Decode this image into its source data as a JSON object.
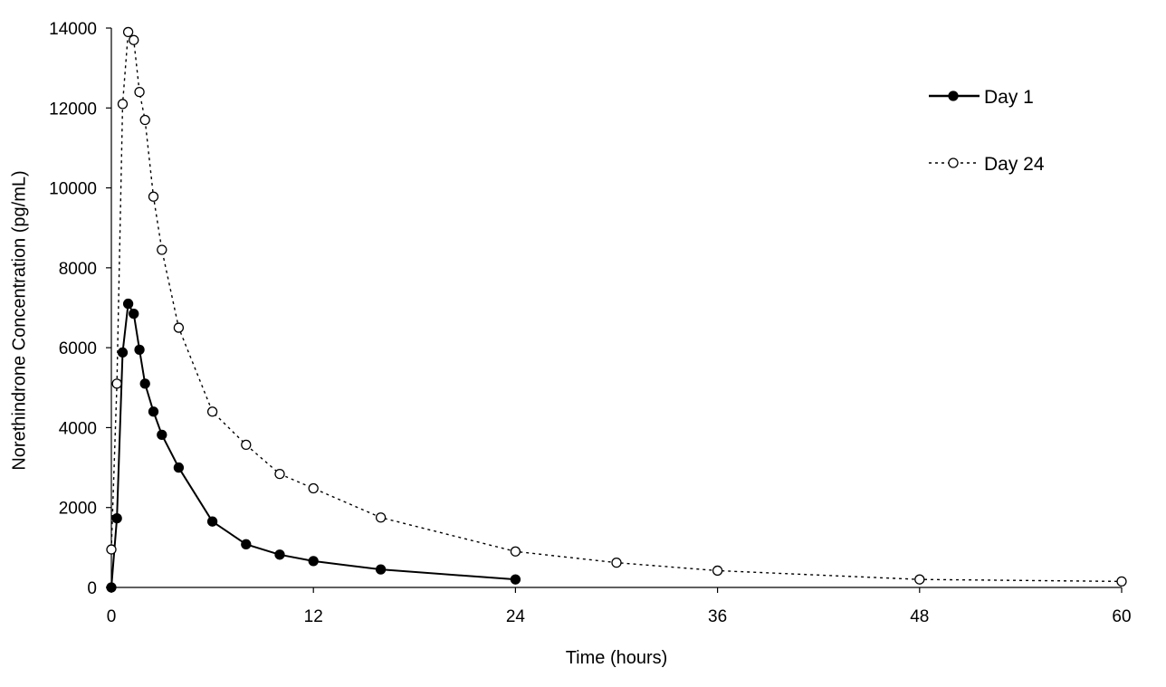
{
  "chart_data": {
    "type": "line",
    "title": "",
    "xlabel": "Time (hours)",
    "ylabel": "Norethindrone Concentration (pg/mL)",
    "xlim": [
      0,
      60
    ],
    "ylim": [
      0,
      14000
    ],
    "xticks": [
      0,
      12,
      24,
      36,
      48,
      60
    ],
    "yticks": [
      0,
      2000,
      4000,
      6000,
      8000,
      10000,
      12000,
      14000
    ],
    "grid": false,
    "legend_position": "top-right",
    "series": [
      {
        "name": "Day 1",
        "style": "solid",
        "marker": "filled-circle",
        "color": "#000000",
        "points": [
          [
            0,
            0
          ],
          [
            0.33,
            1730
          ],
          [
            0.67,
            5880
          ],
          [
            1,
            7100
          ],
          [
            1.33,
            6850
          ],
          [
            1.67,
            5950
          ],
          [
            2,
            5100
          ],
          [
            2.5,
            4400
          ],
          [
            3,
            3820
          ],
          [
            4,
            3000
          ],
          [
            6,
            1650
          ],
          [
            8,
            1080
          ],
          [
            10,
            820
          ],
          [
            12,
            660
          ],
          [
            16,
            450
          ],
          [
            24,
            200
          ]
        ]
      },
      {
        "name": "Day 24",
        "style": "dotted",
        "marker": "open-circle",
        "color": "#000000",
        "points": [
          [
            0,
            950
          ],
          [
            0.33,
            5100
          ],
          [
            0.67,
            12100
          ],
          [
            1,
            13900
          ],
          [
            1.33,
            13700
          ],
          [
            1.67,
            12400
          ],
          [
            2,
            11700
          ],
          [
            2.5,
            9780
          ],
          [
            3,
            8450
          ],
          [
            4,
            6500
          ],
          [
            6,
            4400
          ],
          [
            8,
            3570
          ],
          [
            10,
            2840
          ],
          [
            12,
            2480
          ],
          [
            16,
            1750
          ],
          [
            24,
            900
          ],
          [
            30,
            620
          ],
          [
            36,
            420
          ],
          [
            48,
            200
          ],
          [
            60,
            150
          ]
        ]
      }
    ]
  }
}
